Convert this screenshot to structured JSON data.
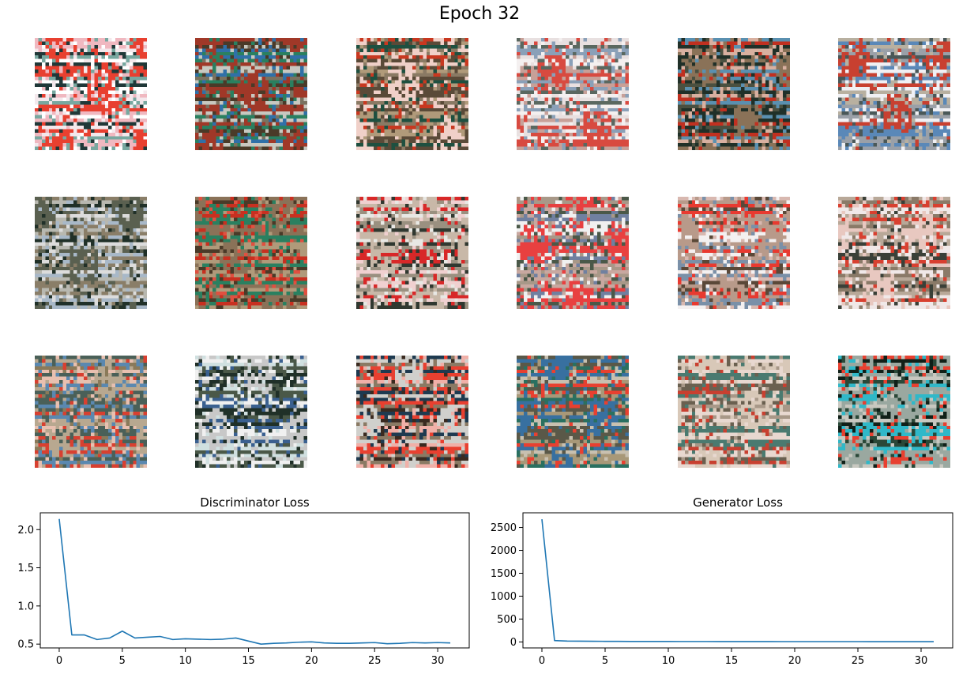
{
  "figure": {
    "title": "Epoch 32"
  },
  "samples": {
    "rows": 3,
    "cols": 6,
    "tiles": [
      {
        "palette": [
          "#ffffff",
          "#f4e8ec",
          "#e84030",
          "#f0b8c0",
          "#78a8a0",
          "#203838"
        ]
      },
      {
        "palette": [
          "#7a7260",
          "#4a3a28",
          "#a03828",
          "#2a8060",
          "#3070a8",
          "#c8c8c0"
        ]
      },
      {
        "palette": [
          "#8a7a64",
          "#c83820",
          "#f0d0c8",
          "#1e5040",
          "#b09a7a",
          "#5a4a38"
        ]
      },
      {
        "palette": [
          "#e8e0e0",
          "#c8a098",
          "#d84a40",
          "#5a6860",
          "#f4f0f0",
          "#8aa0b8"
        ]
      },
      {
        "palette": [
          "#4a5040",
          "#c03020",
          "#8a7258",
          "#203028",
          "#d8b0a0",
          "#5a90b0"
        ]
      },
      {
        "palette": [
          "#9aa0a8",
          "#f0f0f4",
          "#c84030",
          "#4a5858",
          "#b8b0a0",
          "#5a88b8"
        ]
      },
      {
        "palette": [
          "#b8b8b0",
          "#dcdcdc",
          "#5a6050",
          "#8a7e68",
          "#203028",
          "#a8b8c8"
        ]
      },
      {
        "palette": [
          "#c83020",
          "#4a3a28",
          "#8a7258",
          "#e05040",
          "#2a8060",
          "#b09a7a"
        ]
      },
      {
        "palette": [
          "#e8e8e4",
          "#d82828",
          "#c8b8a8",
          "#303830",
          "#9a9080",
          "#f0d0d0"
        ]
      },
      {
        "palette": [
          "#a89888",
          "#f0f0f0",
          "#e84040",
          "#4a5848",
          "#c8a8a0",
          "#7080a0"
        ]
      },
      {
        "palette": [
          "#e83a30",
          "#f4f0f0",
          "#b89a8a",
          "#7a90a8",
          "#5a4838",
          "#d8b8b0"
        ]
      },
      {
        "palette": [
          "#8a7a68",
          "#d84030",
          "#e8c8c0",
          "#3a4038",
          "#b8a898",
          "#f0e8e8"
        ]
      },
      {
        "palette": [
          "#d84030",
          "#8a7a5a",
          "#b8a890",
          "#4a6058",
          "#5a88b0",
          "#e8c0b0"
        ]
      },
      {
        "palette": [
          "#203028",
          "#f0f0f0",
          "#c8c8c8",
          "#4a5848",
          "#d0e0e0",
          "#3a6090"
        ]
      },
      {
        "palette": [
          "#e84030",
          "#1e3a50",
          "#d0d0cc",
          "#8a7a64",
          "#3a2a20",
          "#f0b0a8"
        ]
      },
      {
        "palette": [
          "#5a5848",
          "#a89878",
          "#3870a0",
          "#e84030",
          "#2a7060",
          "#c8c0b0"
        ]
      },
      {
        "palette": [
          "#a89888",
          "#c84030",
          "#d8c8b8",
          "#6a6050",
          "#e8d8d0",
          "#4a7a70"
        ]
      },
      {
        "palette": [
          "#102018",
          "#2a4838",
          "#9aa8a0",
          "#30b8c8",
          "#e84030",
          "#c8c8c0"
        ]
      }
    ]
  },
  "chart_data": [
    {
      "type": "line",
      "title": "Discriminator Loss",
      "xlabel": "",
      "ylabel": "",
      "x": [
        0,
        1,
        2,
        3,
        4,
        5,
        6,
        7,
        8,
        9,
        10,
        11,
        12,
        13,
        14,
        15,
        16,
        17,
        18,
        19,
        20,
        21,
        22,
        23,
        24,
        25,
        26,
        27,
        28,
        29,
        30,
        31
      ],
      "series": [
        {
          "values": [
            2.14,
            0.62,
            0.62,
            0.56,
            0.58,
            0.67,
            0.58,
            0.59,
            0.6,
            0.56,
            0.57,
            0.565,
            0.56,
            0.565,
            0.58,
            0.54,
            0.5,
            0.51,
            0.515,
            0.525,
            0.53,
            0.515,
            0.51,
            0.51,
            0.515,
            0.52,
            0.505,
            0.51,
            0.52,
            0.515,
            0.52,
            0.515
          ]
        }
      ],
      "xlim": [
        -1.5,
        32.5
      ],
      "ylim": [
        0.45,
        2.22
      ],
      "xticks": [
        0,
        5,
        10,
        15,
        20,
        25,
        30
      ],
      "yticks": [
        0.5,
        1.0,
        1.5,
        2.0
      ],
      "ytick_labels": [
        "0.5",
        "1.0",
        "1.5",
        "2.0"
      ],
      "color": "#1f77b4",
      "grid": false
    },
    {
      "type": "line",
      "title": "Generator Loss",
      "xlabel": "",
      "ylabel": "",
      "x": [
        0,
        1,
        2,
        3,
        4,
        5,
        6,
        7,
        8,
        9,
        10,
        11,
        12,
        13,
        14,
        15,
        16,
        17,
        18,
        19,
        20,
        21,
        22,
        23,
        24,
        25,
        26,
        27,
        28,
        29,
        30,
        31
      ],
      "series": [
        {
          "values": [
            2680,
            30,
            20,
            18,
            16,
            14,
            13,
            12,
            12,
            11,
            11,
            10,
            10,
            10,
            9,
            9,
            9,
            9,
            9,
            8,
            8,
            8,
            8,
            8,
            8,
            8,
            7,
            7,
            7,
            7,
            7,
            7
          ]
        }
      ],
      "xlim": [
        -1.5,
        32.5
      ],
      "ylim": [
        -130,
        2820
      ],
      "xticks": [
        0,
        5,
        10,
        15,
        20,
        25,
        30
      ],
      "yticks": [
        0,
        500,
        1000,
        1500,
        2000,
        2500
      ],
      "ytick_labels": [
        "0",
        "500",
        "1000",
        "1500",
        "2000",
        "2500"
      ],
      "color": "#1f77b4",
      "grid": false
    }
  ]
}
